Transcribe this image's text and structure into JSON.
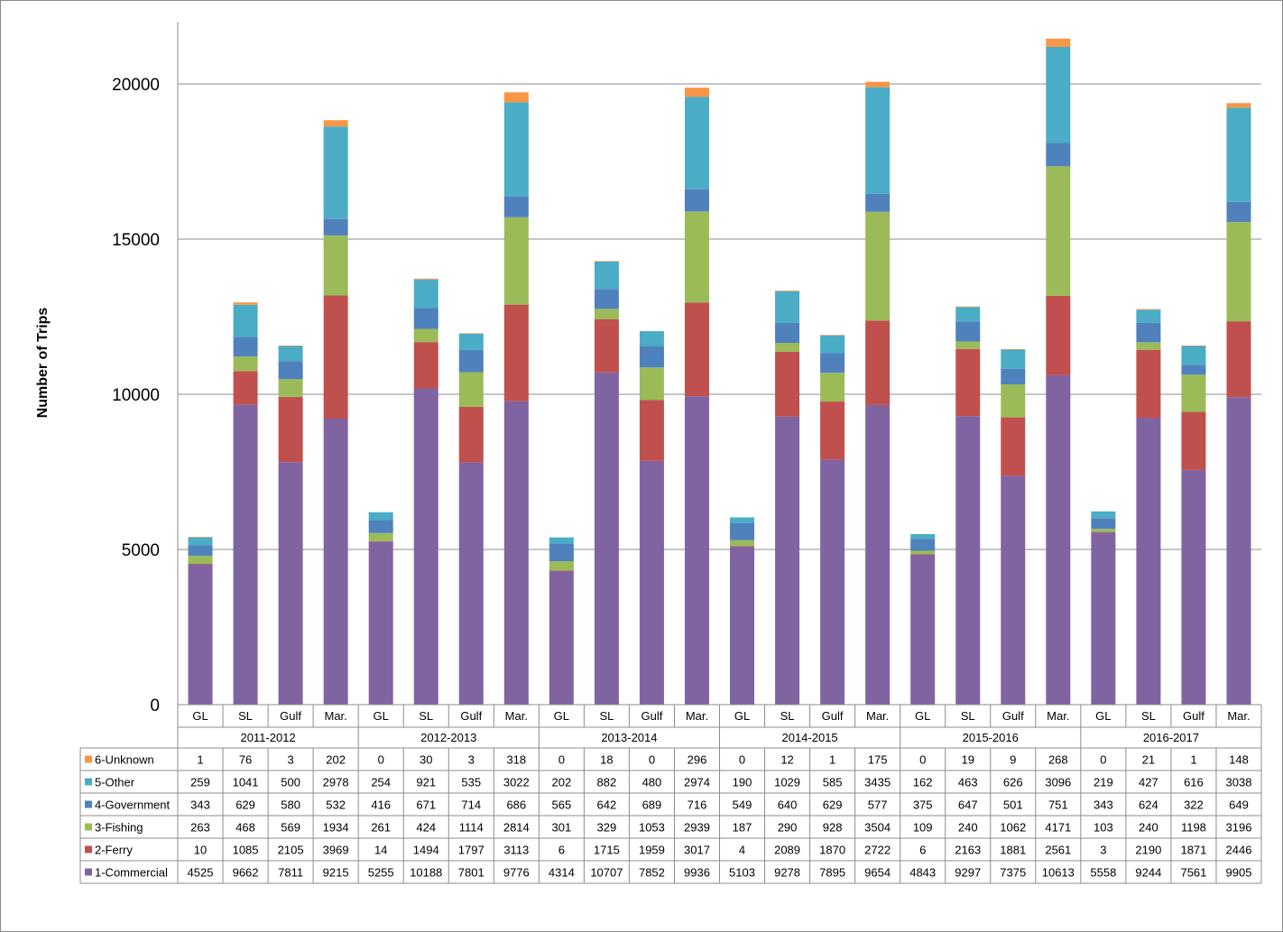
{
  "chart_data": {
    "type": "bar",
    "stacked": true,
    "ylabel": "Number of Trips",
    "ylim": [
      0,
      22000
    ],
    "yticks": [
      0,
      5000,
      10000,
      15000,
      20000
    ],
    "grid": true,
    "legend": "data-table",
    "groups": [
      "2011-2012",
      "2012-2013",
      "2013-2014",
      "2014-2015",
      "2015-2016",
      "2016-2017"
    ],
    "regions": [
      "GL",
      "SL",
      "Gulf",
      "Mar."
    ],
    "series": [
      {
        "name": "1-Commercial",
        "color": "#8064a2",
        "values": [
          4525,
          9662,
          7811,
          9215,
          5255,
          10188,
          7801,
          9776,
          4314,
          10707,
          7852,
          9936,
          5103,
          9278,
          7895,
          9654,
          4843,
          9297,
          7375,
          10613,
          5558,
          9244,
          7561,
          9905
        ]
      },
      {
        "name": "2-Ferry",
        "color": "#c0504d",
        "values": [
          10,
          1085,
          2105,
          3969,
          14,
          1494,
          1797,
          3113,
          6,
          1715,
          1959,
          3017,
          4,
          2089,
          1870,
          2722,
          6,
          2163,
          1881,
          2561,
          3,
          2190,
          1871,
          2446
        ]
      },
      {
        "name": "3-Fishing",
        "color": "#9bbb59",
        "values": [
          263,
          468,
          569,
          1934,
          261,
          424,
          1114,
          2814,
          301,
          329,
          1053,
          2939,
          187,
          290,
          928,
          3504,
          109,
          240,
          1062,
          4171,
          103,
          240,
          1198,
          3196
        ]
      },
      {
        "name": "4-Government",
        "color": "#4f81bd",
        "values": [
          343,
          629,
          580,
          532,
          416,
          671,
          714,
          686,
          565,
          642,
          689,
          716,
          549,
          640,
          629,
          577,
          375,
          647,
          501,
          751,
          343,
          624,
          322,
          649
        ]
      },
      {
        "name": "5-Other",
        "color": "#4bacc6",
        "values": [
          259,
          1041,
          500,
          2978,
          254,
          921,
          535,
          3022,
          202,
          882,
          480,
          2974,
          190,
          1029,
          585,
          3435,
          162,
          463,
          626,
          3096,
          219,
          427,
          616,
          3038
        ]
      },
      {
        "name": "6-Unknown",
        "color": "#f79646",
        "values": [
          1,
          76,
          3,
          202,
          0,
          30,
          3,
          318,
          0,
          18,
          0,
          296,
          0,
          12,
          1,
          175,
          0,
          19,
          9,
          268,
          0,
          21,
          1,
          148
        ]
      }
    ]
  }
}
